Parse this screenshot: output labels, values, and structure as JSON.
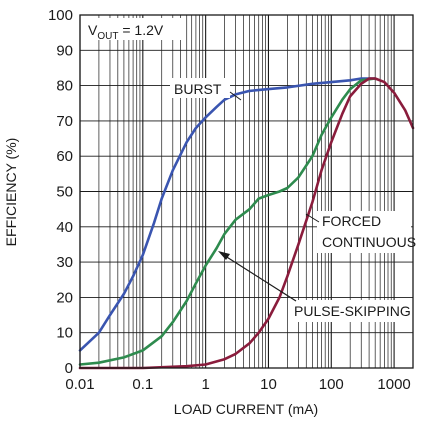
{
  "chart_data": {
    "type": "line",
    "x_scale": "log",
    "xlim": [
      0.01,
      2000
    ],
    "ylim": [
      0,
      100
    ],
    "grid": true,
    "xlabel": "LOAD CURRENT (mA)",
    "ylabel": "EFFICIENCY (%)",
    "x_ticks": [
      "0.01",
      "0.1",
      "1",
      "10",
      "100",
      "1000"
    ],
    "x_tick_values": [
      0.01,
      0.1,
      1,
      10,
      100,
      1000
    ],
    "y_ticks": [
      "0",
      "10",
      "20",
      "30",
      "40",
      "50",
      "60",
      "70",
      "80",
      "90",
      "100"
    ],
    "annotation_vout": {
      "prefix": "V",
      "subscript": "OUT",
      "suffix": " = 1.2V"
    },
    "annotations": {
      "burst": "BURST",
      "forced_line1": "FORCED",
      "forced_line2": "CONTINUOUS",
      "pulse": "PULSE-SKIPPING"
    },
    "series": [
      {
        "name": "BURST",
        "color": "#3a55b0",
        "x": [
          0.01,
          0.02,
          0.03,
          0.05,
          0.07,
          0.1,
          0.15,
          0.2,
          0.3,
          0.5,
          0.7,
          1,
          1.5,
          2,
          3,
          5,
          10,
          20,
          50,
          100,
          200,
          300,
          500
        ],
        "y": [
          5,
          10,
          15,
          21,
          26,
          32,
          41,
          48,
          56,
          64,
          68,
          71,
          74,
          76,
          77.5,
          78.5,
          79,
          79.5,
          80.5,
          81,
          81.5,
          82,
          82
        ]
      },
      {
        "name": "PULSE-SKIPPING",
        "color": "#2e8b4e",
        "x": [
          0.01,
          0.02,
          0.05,
          0.1,
          0.2,
          0.3,
          0.5,
          0.7,
          1,
          1.5,
          2,
          3,
          5,
          7,
          10,
          15,
          20,
          30,
          50,
          70,
          100,
          150,
          200,
          300,
          500
        ],
        "y": [
          1,
          1.5,
          3,
          5,
          9,
          13,
          19,
          24,
          29,
          34,
          38,
          42,
          45,
          48,
          49,
          50,
          51,
          54,
          60,
          66,
          71,
          76,
          79,
          81.5,
          82
        ]
      },
      {
        "name": "FORCED CONTINUOUS",
        "color": "#8a1c3c",
        "x": [
          0.01,
          0.1,
          0.5,
          1,
          2,
          3,
          5,
          7,
          10,
          15,
          20,
          30,
          50,
          70,
          100,
          150,
          200,
          300,
          400,
          500,
          700,
          1000,
          1500,
          2000
        ],
        "y": [
          0,
          0,
          0.5,
          1,
          2.5,
          4,
          7,
          10,
          14,
          20,
          26,
          35,
          47,
          56,
          64,
          72,
          77,
          80.5,
          82,
          82,
          81,
          78,
          73,
          68
        ]
      }
    ]
  }
}
